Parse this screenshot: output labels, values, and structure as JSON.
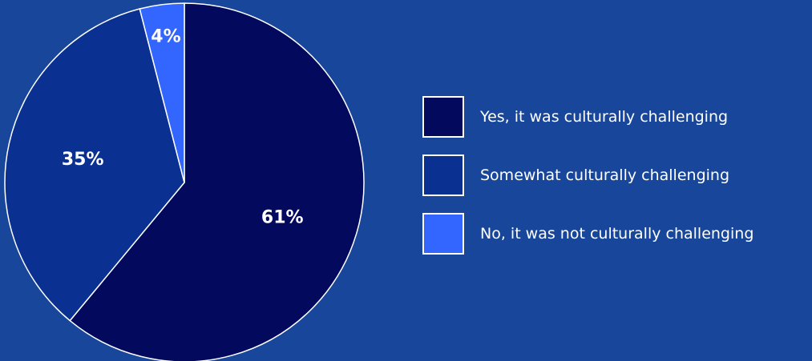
{
  "chart_data": {
    "type": "pie",
    "categories": [
      "Yes, it was culturally challenging",
      "Somewhat culturally challenging",
      "No, it was not culturally challenging"
    ],
    "values": [
      61,
      35,
      4
    ],
    "data_labels": [
      "61%",
      "35%",
      "4%"
    ],
    "colors": [
      "#030a5e",
      "#0a3191",
      "#3366ff"
    ],
    "background": "#17469a",
    "slice_border_color": "#ffffff",
    "start_angle": "12 o'clock",
    "direction": "clockwise",
    "legend_position": "right"
  }
}
